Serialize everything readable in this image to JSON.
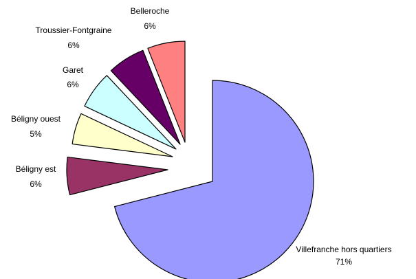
{
  "chart_data": {
    "type": "pie",
    "title": "",
    "labels": [
      "Villefranche hors quartiers",
      "Béligny est",
      "Béligny ouest",
      "Garet",
      "Troussier-Fontgraine",
      "Belleroche"
    ],
    "values": [
      71,
      6,
      5,
      6,
      6,
      6
    ],
    "percent_labels": [
      "71%",
      "6%",
      "5%",
      "6%",
      "6%",
      "6%"
    ],
    "colors": [
      "#9999FF",
      "#993366",
      "#FFFFCC",
      "#CCFFFF",
      "#660066",
      "#FF8080"
    ],
    "exploded": true,
    "legend": "none"
  }
}
